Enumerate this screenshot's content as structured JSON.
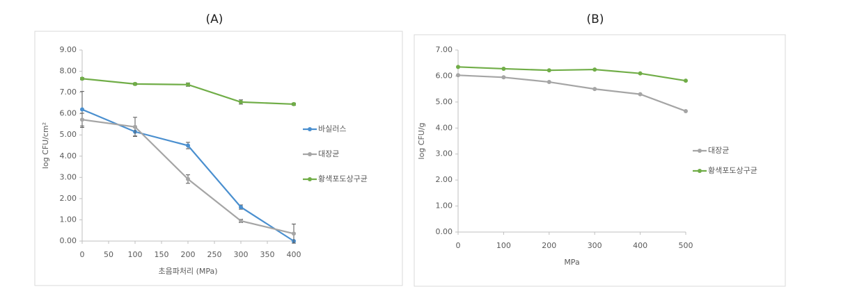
{
  "chart_data": [
    {
      "type": "line",
      "title": "(A)",
      "ylabel": "log CFU/cm²",
      "xlabel": "초음파처리 (MPa)",
      "x": [
        0,
        100,
        200,
        300,
        400
      ],
      "xlim": [
        0,
        400
      ],
      "xticks": [
        0,
        50,
        100,
        150,
        200,
        250,
        300,
        350,
        400
      ],
      "ylim": [
        0,
        9
      ],
      "yticks": [
        {
          "value": 0,
          "label": "0.00"
        },
        {
          "value": 1,
          "label": "1.00"
        },
        {
          "value": 2,
          "label": "2.00"
        },
        {
          "value": 3,
          "label": "3.00"
        },
        {
          "value": 4,
          "label": "4.00"
        },
        {
          "value": 5,
          "label": "5.00"
        },
        {
          "value": 6,
          "label": "6.00"
        },
        {
          "value": 7,
          "label": "7.00"
        },
        {
          "value": 8,
          "label": "8.00"
        },
        {
          "value": 9,
          "label": "9.00"
        }
      ],
      "legend": "right",
      "series": [
        {
          "name": "바실러스",
          "color": "#4a8fcf",
          "values": [
            6.2,
            5.15,
            4.5,
            1.6,
            0.0
          ],
          "errors": [
            0.85,
            0.2,
            0.15,
            0.1,
            0.0
          ]
        },
        {
          "name": "대장균",
          "color": "#a5a5a5",
          "values": [
            5.72,
            5.38,
            2.92,
            0.95,
            0.35
          ],
          "errors": [
            0.3,
            0.45,
            0.2,
            0.08,
            0.45
          ]
        },
        {
          "name": "황색포도상구균",
          "color": "#70ad47",
          "values": [
            7.65,
            7.4,
            7.37,
            6.55,
            6.45
          ],
          "errors": [
            0.05,
            0.05,
            0.08,
            0.1,
            0.05
          ]
        }
      ]
    },
    {
      "type": "line",
      "title": "(B)",
      "ylabel": "log CFU/g",
      "xlabel": "MPa",
      "x": [
        0,
        100,
        200,
        300,
        400,
        500
      ],
      "xlim": [
        0,
        500
      ],
      "xticks": [
        0,
        100,
        200,
        300,
        400,
        500
      ],
      "ylim": [
        0,
        7
      ],
      "yticks": [
        {
          "value": 0,
          "label": "0.00"
        },
        {
          "value": 1,
          "label": "1.00"
        },
        {
          "value": 2,
          "label": "2.00"
        },
        {
          "value": 3,
          "label": "3.00"
        },
        {
          "value": 4,
          "label": "4.00"
        },
        {
          "value": 5,
          "label": "5.00"
        },
        {
          "value": 6,
          "label": "6.00"
        },
        {
          "value": 7,
          "label": "7.00"
        }
      ],
      "legend": "right",
      "series": [
        {
          "name": "대장균",
          "color": "#a5a5a5",
          "values": [
            6.03,
            5.95,
            5.77,
            5.5,
            5.3,
            4.65
          ]
        },
        {
          "name": "황색포도상구균",
          "color": "#70ad47",
          "values": [
            6.35,
            6.28,
            6.22,
            6.25,
            6.1,
            5.82
          ]
        }
      ]
    }
  ]
}
